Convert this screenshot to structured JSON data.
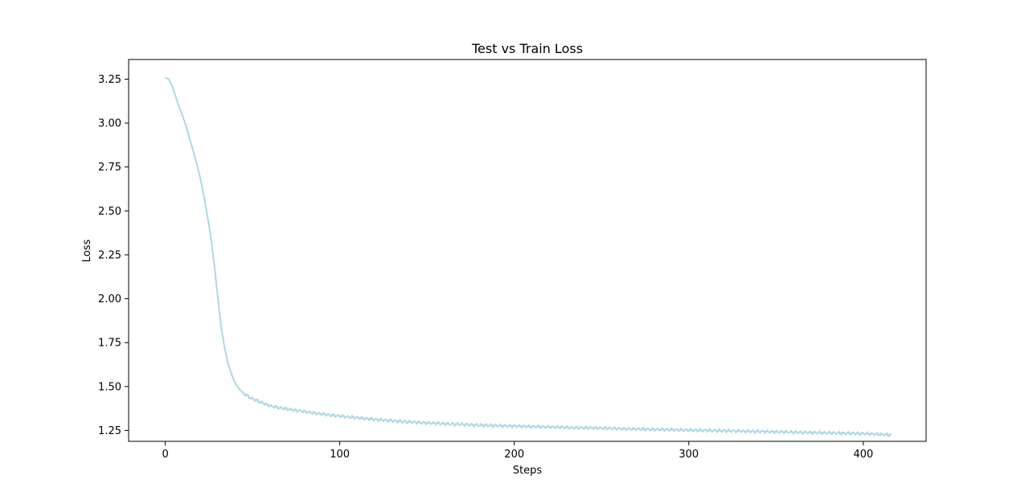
{
  "chart_data": {
    "type": "line",
    "title": "Test vs Train Loss",
    "xlabel": "Steps",
    "ylabel": "Loss",
    "xlim": [
      -21,
      436
    ],
    "ylim": [
      1.188,
      3.362
    ],
    "xticks": [
      0,
      100,
      200,
      300,
      400
    ],
    "yticks": [
      1.25,
      1.5,
      1.75,
      2.0,
      2.25,
      2.5,
      2.75,
      3.0,
      3.25
    ],
    "xtick_labels": [
      "0",
      "100",
      "200",
      "300",
      "400"
    ],
    "ytick_labels": [
      "1.25",
      "1.50",
      "1.75",
      "2.00",
      "2.25",
      "2.50",
      "2.75",
      "3.00",
      "3.25"
    ],
    "grid": false,
    "line_color": "#add8e6",
    "series": [
      {
        "x": [
          0,
          2,
          4,
          6,
          8,
          10,
          12,
          14,
          16,
          18,
          20,
          22,
          24,
          26,
          28,
          30,
          32,
          34,
          36,
          38,
          40,
          42,
          44,
          46,
          48,
          50,
          55,
          60,
          65,
          70,
          75,
          80,
          85,
          90,
          95,
          100,
          110,
          120,
          130,
          140,
          150,
          160,
          170,
          180,
          190,
          200,
          210,
          220,
          230,
          240,
          250,
          260,
          270,
          280,
          290,
          300,
          310,
          320,
          330,
          340,
          350,
          360,
          370,
          380,
          390,
          400,
          410,
          416
        ],
        "y": [
          3.26,
          3.25,
          3.21,
          3.15,
          3.09,
          3.04,
          2.98,
          2.91,
          2.84,
          2.77,
          2.69,
          2.59,
          2.48,
          2.36,
          2.2,
          2.02,
          1.84,
          1.72,
          1.63,
          1.57,
          1.52,
          1.49,
          1.47,
          1.455,
          1.44,
          1.43,
          1.41,
          1.39,
          1.38,
          1.372,
          1.364,
          1.357,
          1.35,
          1.343,
          1.337,
          1.332,
          1.322,
          1.313,
          1.305,
          1.298,
          1.293,
          1.288,
          1.284,
          1.28,
          1.277,
          1.275,
          1.272,
          1.27,
          1.267,
          1.265,
          1.263,
          1.26,
          1.258,
          1.256,
          1.254,
          1.252,
          1.25,
          1.248,
          1.246,
          1.244,
          1.242,
          1.24,
          1.238,
          1.236,
          1.234,
          1.232,
          1.228,
          1.224
        ]
      }
    ]
  }
}
